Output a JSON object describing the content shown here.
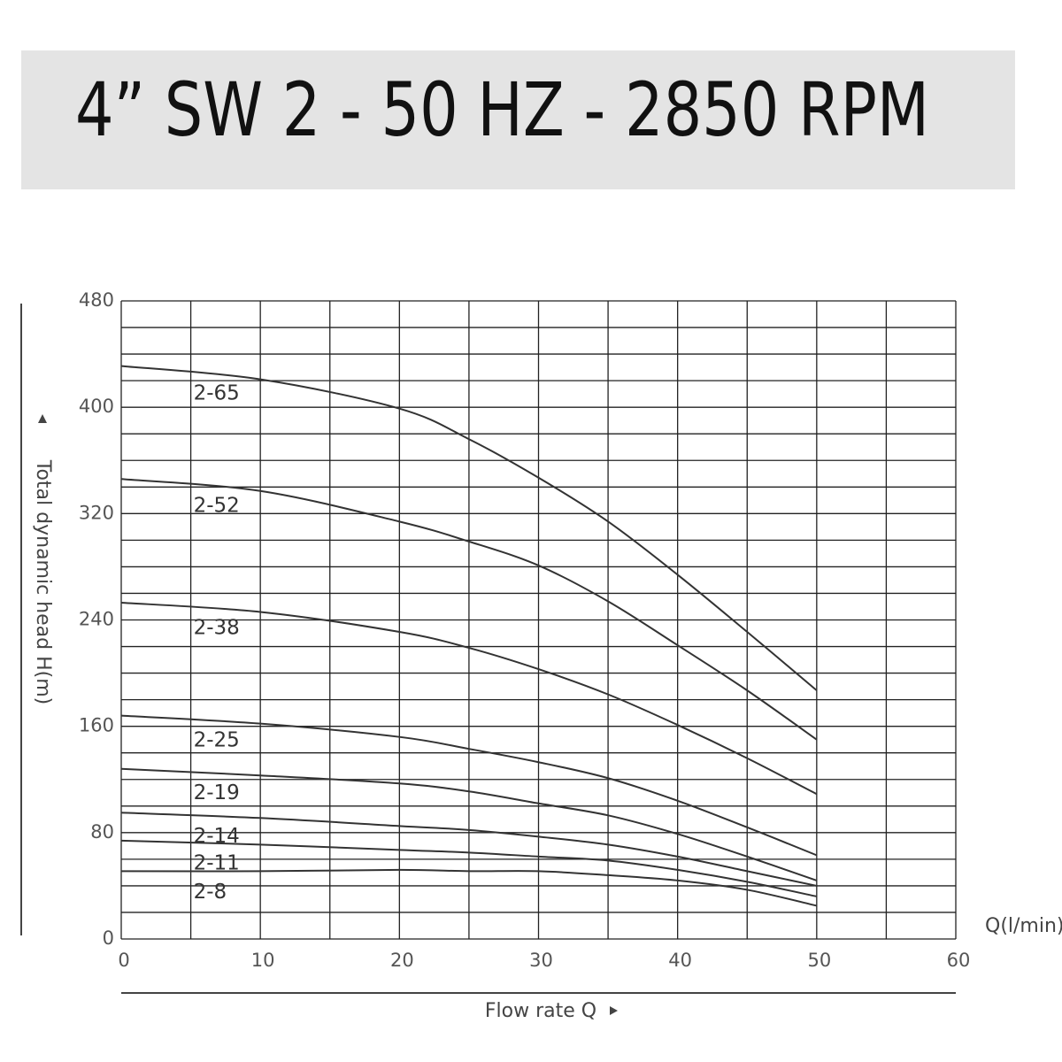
{
  "chart_data": {
    "type": "line",
    "title": "4” SW 2 - 50 HZ - 2850 RPM",
    "x_label": "Flow rate Q",
    "y_label": "Total dynamic head H(m)",
    "x_unit": "Q(l/min)",
    "xlim": [
      0,
      60
    ],
    "ylim": [
      0,
      480
    ],
    "xticks": [
      0,
      10,
      20,
      30,
      40,
      50,
      60
    ],
    "yticks": [
      0,
      80,
      160,
      240,
      320,
      400,
      480
    ],
    "xgrid": [
      0,
      5,
      10,
      15,
      20,
      25,
      30,
      35,
      40,
      45,
      50,
      55,
      60
    ],
    "ygrid": [
      0,
      20,
      40,
      60,
      80,
      100,
      120,
      140,
      160,
      180,
      200,
      220,
      240,
      260,
      280,
      300,
      320,
      340,
      360,
      380,
      400,
      420,
      440,
      460,
      480
    ],
    "grid": true,
    "color": "#333333",
    "x": [
      0,
      10,
      20,
      25,
      30,
      35,
      40,
      45,
      50
    ],
    "series": [
      {
        "name": "2-65",
        "values": [
          431,
          421,
          399,
          376,
          347,
          314,
          274,
          231,
          187
        ]
      },
      {
        "name": "2-52",
        "values": [
          346,
          337,
          314,
          299,
          281,
          254,
          221,
          187,
          150
        ]
      },
      {
        "name": "2-38",
        "values": [
          253,
          246,
          231,
          219,
          203,
          184,
          161,
          136,
          109
        ]
      },
      {
        "name": "2-25",
        "values": [
          168,
          162,
          152,
          143,
          133,
          121,
          104,
          84,
          63
        ]
      },
      {
        "name": "2-19",
        "values": [
          128,
          123,
          117,
          111,
          102,
          93,
          79,
          62,
          44
        ]
      },
      {
        "name": "2-14",
        "values": [
          95,
          91,
          85,
          82,
          77,
          71,
          62,
          51,
          40
        ]
      },
      {
        "name": "2-11",
        "values": [
          74,
          71,
          67,
          65,
          62,
          59,
          52,
          43,
          32
        ]
      },
      {
        "name": "2-8",
        "values": [
          51,
          51,
          52,
          51,
          51,
          48,
          44,
          37,
          25
        ]
      }
    ]
  }
}
